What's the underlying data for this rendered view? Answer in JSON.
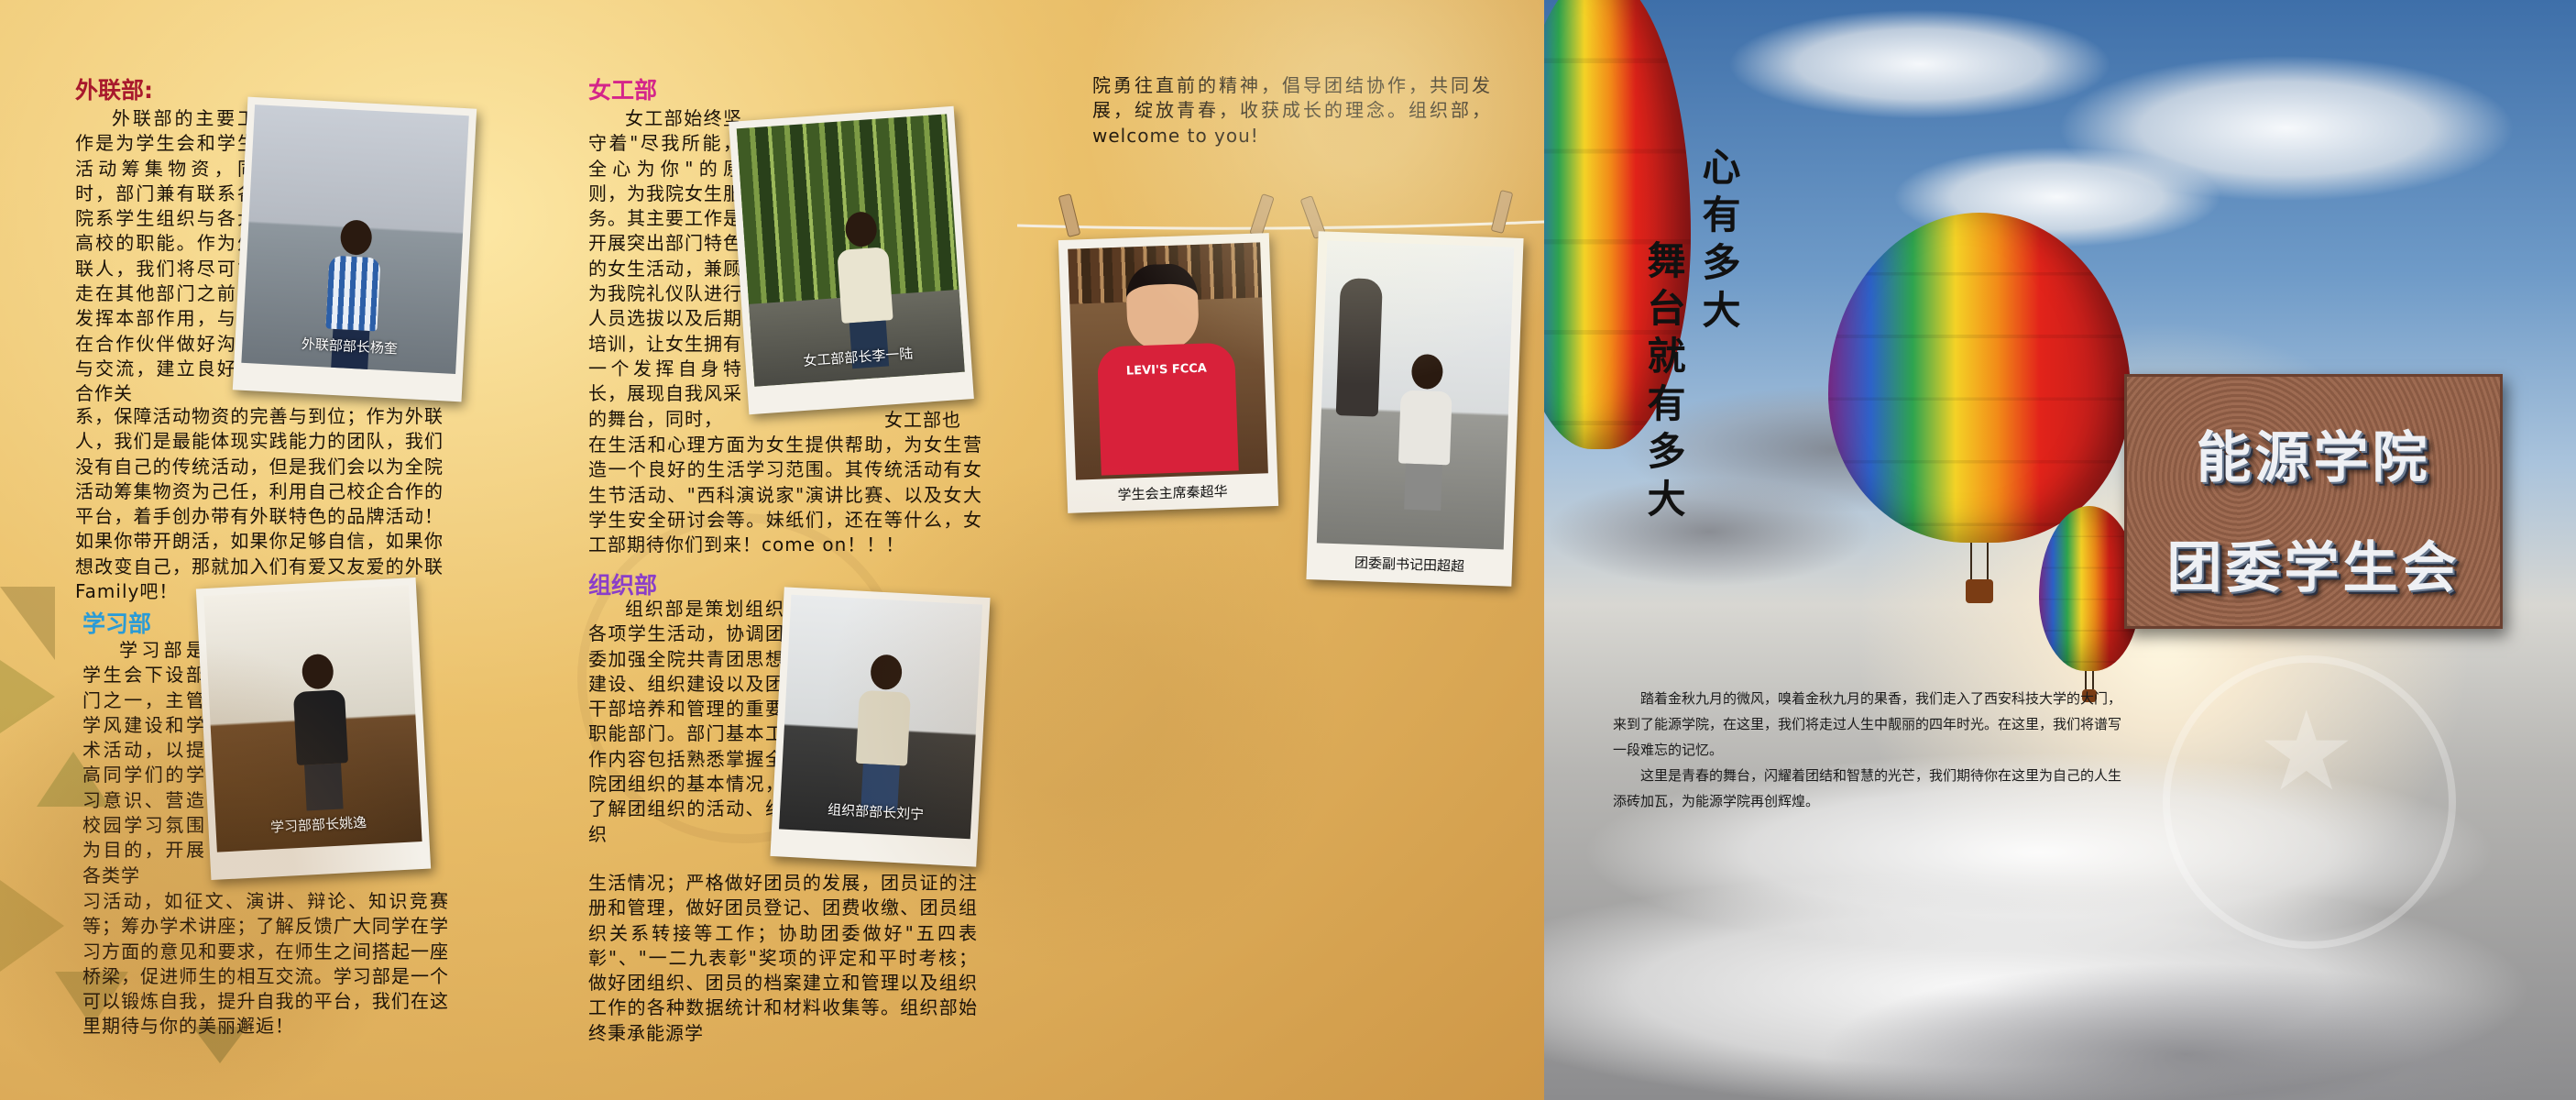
{
  "waillian": {
    "title": "外联部:",
    "text_wrap": "外联部的主要工作是为学生会和学生活动筹集物资，同时，部门兼有联系各院系学生组织与各大高校的职能。作为外联人，我们将尽可能走在其他部门之前，发挥本部作用，与潜在合作伙伴做好沟通与交流，建立良好的合作关",
    "text_full": "系，保障活动物资的完善与到位；作为外联人，我们是最能体现实践能力的团队，我们没有自己的传统活动，但是我们会以为全院活动筹集物资为己任，利用自己校企合作的平台，着手创办带有外联特色的品牌活动！如果你带开朗活，如果你足够自信，如果你想改变自己，那就加入们有爱又友爱的外联Family吧！",
    "caption": "外联部部长杨奎"
  },
  "xuexi": {
    "title": "学习部",
    "text_wrap": "学习部是学生会下设部门之一，主管学风建设和学术活动，以提高同学们的学习意识、营造校园学习氛围为目的，开展各类学",
    "text_full": "习活动，如征文、演讲、辩论、知识竞赛等；筹办学术讲座；了解反馈广大同学在学习方面的意见和要求，在师生之间搭起一座桥梁，促进师生的相互交流。学习部是一个可以锻炼自我，提升自我的平台，我们在这里期待与你的美丽邂逅！",
    "caption": "学习部部长姚逸"
  },
  "nvgong": {
    "title": "女工部",
    "text_wrap": "女工部始终坚守着\"尽我所能，全心为你\"的原则，为我院女生服务。其主要工作是开展突出部门特色的女生活动，兼顾为我院礼仪队进行人员选拔以及后期培训，让女生拥有一个发挥自身特长，展现自我风采的舞台，同时，",
    "text_tail": "女工部也",
    "text_full": "在生活和心理方面为女生提供帮助，为女生营造一个良好的生活学习范围。其传统活动有女生节活动、\"西科演说家\"演讲比赛、以及女大学生安全研讨会等。妹纸们，还在等什么，女工部期待你们到来！come on！！！",
    "caption": "女工部部长李一陆"
  },
  "zuzhi": {
    "title": "组织部",
    "text_wrap": "组织部是策划组织各项学生活动，协调团委加强全院共青团思想建设、组织建设以及团干部培养和管理的重要职能部门。部门基本工作内容包括熟悉掌握全院团组织的基本情况，了解团组织的活动、组织",
    "text_full": "生活情况；严格做好团员的发展，团员证的注册和管理，做好团员登记、团费收缴、团员组织关系转接等工作；协助团委做好\"五四表彰\"、\"一二九表彰\"奖项的评定和平时考核；做好团组织、团员的档案建立和管理以及组织工作的各种数据统计和材料收集等。组织部始终秉承能源学",
    "text_continued": "院勇往直前的精神，倡导团结协作，共同发展，绽放青春，收获成长的理念。组织部，welcome to you!",
    "caption": "组织部部长刘宁"
  },
  "polaroids": [
    {
      "caption": "学生会主席秦超华",
      "shirt_text": "LEVI'S FCCA"
    },
    {
      "caption": "团委副书记田超超"
    }
  ],
  "slogan": {
    "line1": "心有多大",
    "line2": "舞台就有多大"
  },
  "plaque": {
    "line1": "能源学院",
    "line2": "团委学生会"
  },
  "intro": {
    "p1": "踏着金秋九月的微风，嗅着金秋九月的果香，我们走入了西安科技大学的大门，来到了能源学院，在这里，我们将走过人生中靓丽的四年时光。在这里，我们将谱写一段难忘的记忆。",
    "p2": "这里是青春的舞台，闪耀着团结和智慧的光芒，我们期待你在这里为自己的人生添砖加瓦，为能源学院再创辉煌。"
  },
  "colors": {
    "title_red": "#a8182c",
    "title_magenta": "#d4258a",
    "title_blue": "#2a9bd6",
    "title_purple": "#8a3ec8"
  }
}
